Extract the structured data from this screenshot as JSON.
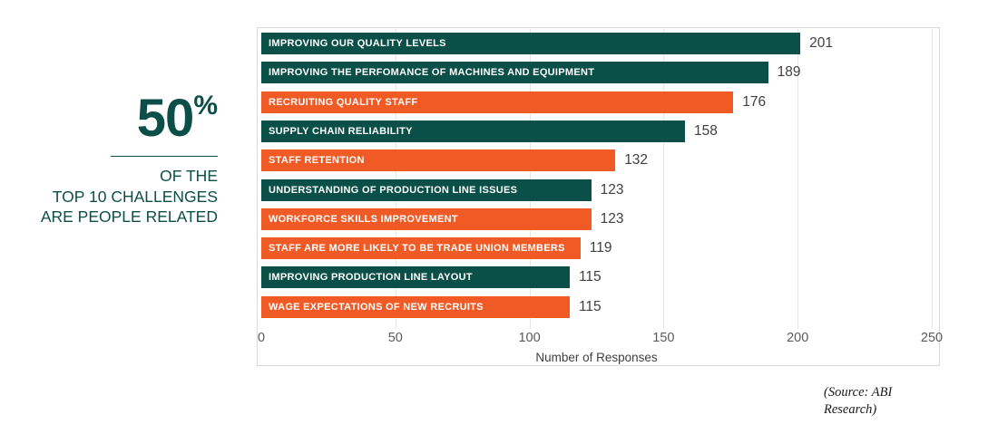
{
  "stat": {
    "number": "50",
    "percent_sign": "%",
    "caption_lines": [
      "OF THE",
      "TOP 10 CHALLENGES",
      "ARE PEOPLE RELATED"
    ]
  },
  "chart_data": {
    "type": "bar",
    "orientation": "horizontal",
    "categories": [
      "IMPROVING OUR QUALITY LEVELS",
      "IMPROVING THE PERFOMANCE OF MACHINES AND EQUIPMENT",
      "RECRUITING QUALITY STAFF",
      "SUPPLY CHAIN RELIABILITY",
      "STAFF RETENTION",
      "UNDERSTANDING OF PRODUCTION LINE ISSUES",
      "WORKFORCE SKILLS IMPROVEMENT",
      "STAFF ARE MORE LIKELY TO BE TRADE UNION MEMBERS",
      "IMPROVING PRODUCTION LINE LAYOUT",
      "WAGE EXPECTATIONS OF NEW RECRUITS"
    ],
    "values": [
      201,
      189,
      176,
      158,
      132,
      123,
      123,
      119,
      115,
      115
    ],
    "bar_colors": [
      "teal",
      "teal",
      "orange",
      "teal",
      "orange",
      "teal",
      "orange",
      "orange",
      "teal",
      "orange"
    ],
    "colors": {
      "teal": "#0A4F48",
      "orange": "#F05A25"
    },
    "value_labels_shown": true,
    "xlabel": "Number of Responses",
    "x_ticks": [
      0,
      50,
      100,
      150,
      200,
      250
    ],
    "xlim": [
      0,
      250
    ],
    "grid": "vertical",
    "legend": "none"
  },
  "source": {
    "text": "(Source: ABI Research)"
  }
}
